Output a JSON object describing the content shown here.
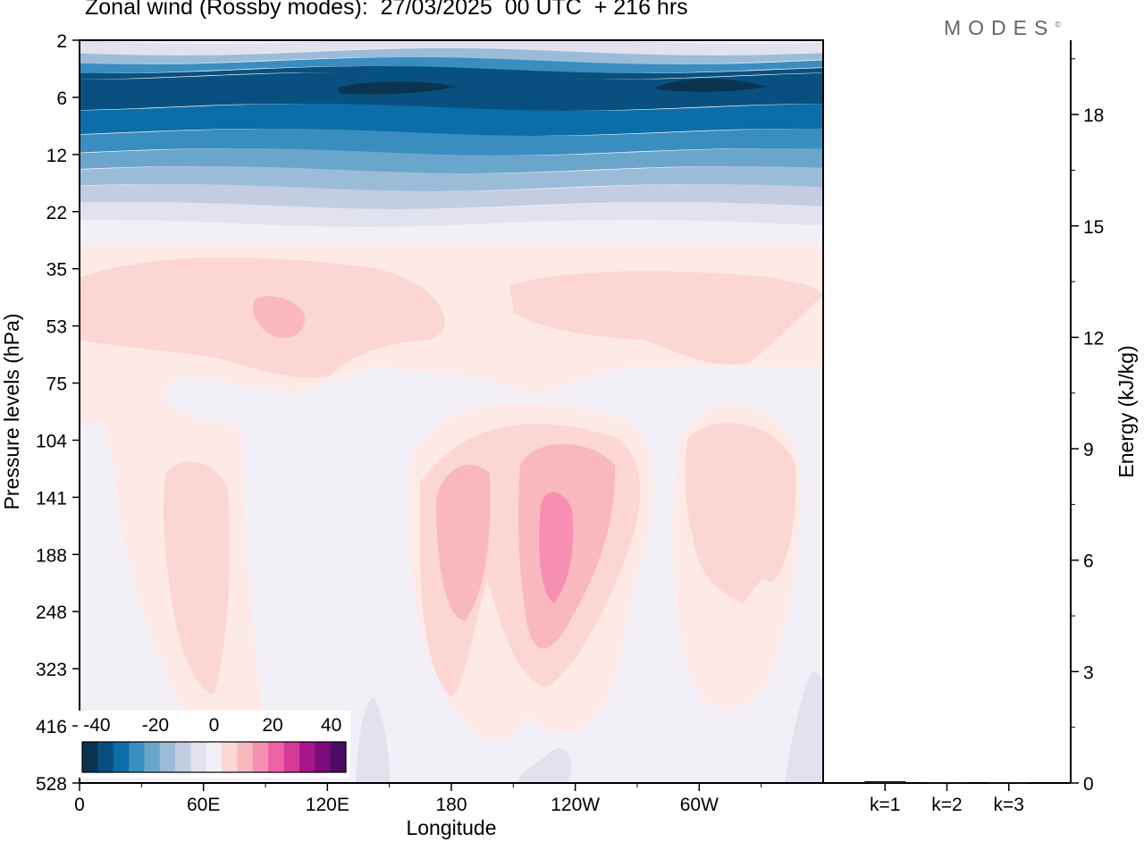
{
  "title": "Zonal wind (Rossby modes):  27/03/2025  00 UTC  + 216 hrs",
  "logo": "MODES",
  "logo_mark": "©",
  "colors": {
    "axis": "#000000",
    "blues": [
      "#0a3450",
      "#08507f",
      "#0b6ea9",
      "#3a8ebf",
      "#6aa6cc",
      "#9bbcd9",
      "#c2cde2",
      "#e2e2ee"
    ],
    "neutral": "#f3eff6",
    "reds": [
      "#fdeae7",
      "#fbd6d3",
      "#f9b8be",
      "#f68fb2",
      "#ef62a6",
      "#d63a97",
      "#a7168b",
      "#7c0a7d",
      "#4b0c62"
    ],
    "energy_bar": "#1a1a1a"
  },
  "chart_data": [
    {
      "type": "heatmap",
      "title": "Zonal wind (Rossby modes):  27/03/2025  00 UTC  + 216 hrs",
      "xlabel": "Longitude",
      "ylabel": "Pressure levels (hPa)",
      "x_ticks": [
        "0",
        "60E",
        "120E",
        "180",
        "120W",
        "60W"
      ],
      "x_tick_degrees": [
        0,
        60,
        120,
        180,
        240,
        300
      ],
      "xlim_degrees": [
        0,
        360
      ],
      "y_ticks": [
        "2",
        "6",
        "12",
        "22",
        "35",
        "53",
        "75",
        "104",
        "141",
        "188",
        "248",
        "323",
        "416",
        "528"
      ],
      "y_scale": "model levels, pressure increasing downward",
      "colorbar": {
        "ticks": [
          "-40",
          "-20",
          "0",
          "20",
          "40"
        ],
        "range": [
          -45,
          45
        ],
        "placement": "bottom-left inset"
      },
      "field_description_levels": [
        {
          "level": "2",
          "value": -4
        },
        {
          "level": "6",
          "value": -42
        },
        {
          "level": "12",
          "value": -28
        },
        {
          "level": "22",
          "value": -8
        },
        {
          "level": "35",
          "value": 3
        },
        {
          "level": "53",
          "value": 10
        },
        {
          "level": "75",
          "value": 1
        },
        {
          "level": "141",
          "value": 8
        },
        {
          "level": "188",
          "value": 20
        },
        {
          "level": "528",
          "value": -2
        }
      ]
    },
    {
      "type": "bar",
      "categories": [
        "k=1",
        "k=2",
        "k=3"
      ],
      "values": [
        0.05,
        0.02,
        0.02
      ],
      "ylabel": "Energy (kJ/kg)",
      "ylim": [
        0,
        20
      ],
      "y_ticks": [
        "0",
        "3",
        "6",
        "9",
        "12",
        "15",
        "18"
      ],
      "y_tick_values": [
        0,
        3,
        6,
        9,
        12,
        15,
        18
      ]
    }
  ]
}
